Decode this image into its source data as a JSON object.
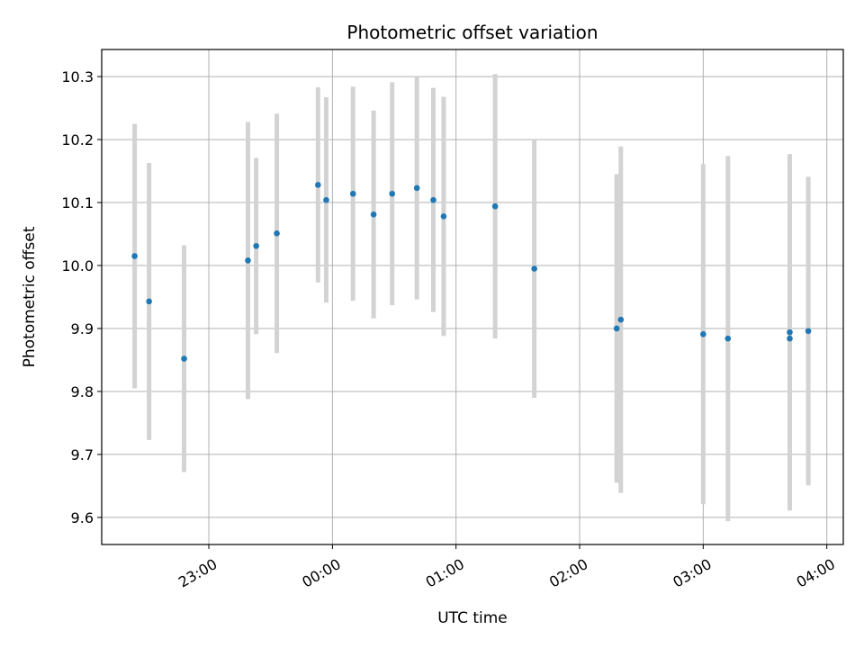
{
  "chart_data": {
    "type": "scatter",
    "title": "Photometric offset variation",
    "xlabel": "UTC time",
    "ylabel": "Photometric offset",
    "xlim": [
      "22:08",
      "04:08"
    ],
    "ylim": [
      9.557,
      10.343
    ],
    "grid": true,
    "x_ticks": [
      "23:00",
      "00:00",
      "01:00",
      "02:00",
      "03:00",
      "04:00"
    ],
    "y_ticks": [
      9.6,
      9.7,
      9.8,
      9.9,
      10.0,
      10.1,
      10.2,
      10.3
    ],
    "y_tick_labels": [
      "9.6",
      "9.7",
      "9.8",
      "9.9",
      "10.0",
      "10.1",
      "10.2",
      "10.3"
    ],
    "point_color": "#1f77b4",
    "errorbar_color": "#d3d3d3",
    "series": [
      {
        "x": [
          "22:24",
          "22:31",
          "22:48",
          "23:19",
          "23:23",
          "23:33",
          "23:53",
          "23:57",
          "00:10",
          "00:20",
          "00:29",
          "00:41",
          "00:49",
          "00:54",
          "01:19",
          "01:38",
          "02:18",
          "02:20",
          "03:00",
          "03:12",
          "03:42",
          "03:42",
          "03:51"
        ],
        "y": [
          10.015,
          9.943,
          9.852,
          10.008,
          10.031,
          10.051,
          10.128,
          10.104,
          10.114,
          10.081,
          10.114,
          10.123,
          10.104,
          10.078,
          10.094,
          9.995,
          9.9,
          9.914,
          9.891,
          9.884,
          9.884,
          9.894,
          9.896
        ],
        "yerr": [
          0.21,
          0.22,
          0.18,
          0.22,
          0.14,
          0.19,
          0.155,
          0.163,
          0.17,
          0.165,
          0.177,
          0.177,
          0.178,
          0.19,
          0.21,
          0.205,
          0.245,
          0.275,
          0.27,
          0.29,
          0.263,
          0.283,
          0.245
        ]
      }
    ]
  }
}
